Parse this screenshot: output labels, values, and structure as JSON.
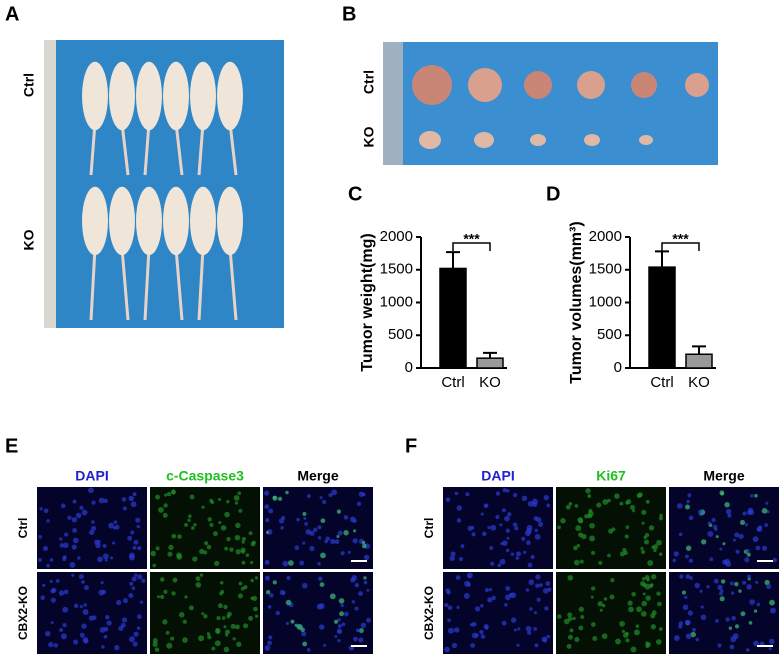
{
  "panels": {
    "A": {
      "label": "A",
      "rows": [
        "Ctrl",
        "KO"
      ]
    },
    "B": {
      "label": "B",
      "rows": [
        "Ctrl",
        "KO"
      ]
    },
    "E": {
      "label": "E",
      "columns": [
        "DAPI",
        "c-Caspase3",
        "Merge"
      ],
      "rows": [
        "Ctrl",
        "CBX2-KO"
      ]
    },
    "F": {
      "label": "F",
      "columns": [
        "DAPI",
        "Ki67",
        "Merge"
      ],
      "rows": [
        "Ctrl",
        "CBX2-KO"
      ]
    }
  },
  "chart_data": [
    {
      "type": "bar",
      "label": "C",
      "y_label": "Tumor weight(mg)",
      "categories": [
        "Ctrl",
        "KO"
      ],
      "values": [
        1520,
        150
      ],
      "errors": [
        250,
        80
      ],
      "colors": [
        "#000000",
        "#999999"
      ],
      "significance": "***",
      "ylim": [
        0,
        2000
      ],
      "yticks": [
        0,
        500,
        1000,
        1500,
        2000
      ]
    },
    {
      "type": "bar",
      "label": "D",
      "y_label": "Tumor volumes(mm³)",
      "categories": [
        "Ctrl",
        "KO"
      ],
      "values": [
        1540,
        210
      ],
      "errors": [
        240,
        120
      ],
      "colors": [
        "#000000",
        "#999999"
      ],
      "significance": "***",
      "ylim": [
        0,
        2000
      ],
      "yticks": [
        0,
        500,
        1000,
        1500,
        2000
      ]
    }
  ]
}
